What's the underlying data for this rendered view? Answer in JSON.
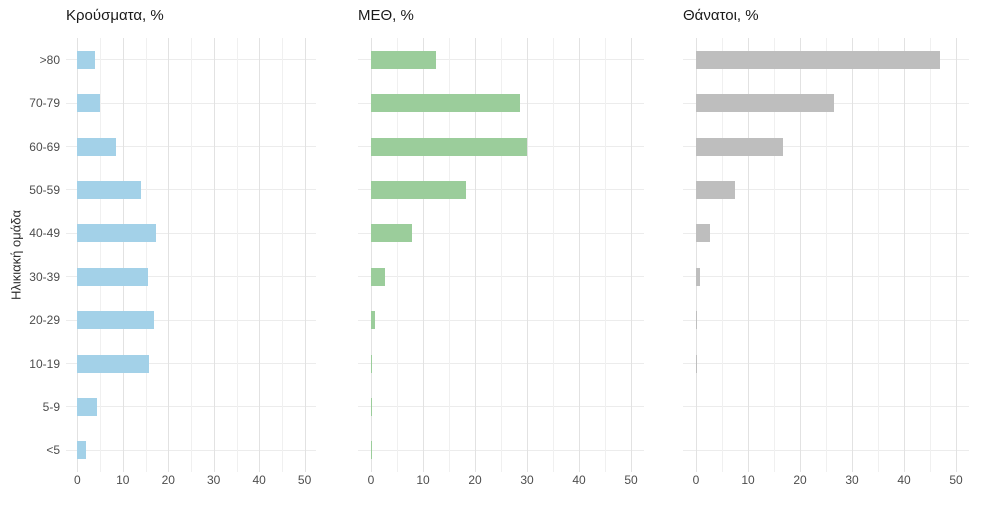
{
  "figure": {
    "background": "#ffffff",
    "text_color": "#1a1a1a",
    "axis_text_color": "#4d4d4d",
    "grid_major_color": "#e2e2e2",
    "grid_minor_color": "#f0f0f0"
  },
  "chart_data": {
    "type": "bar",
    "orientation": "horizontal",
    "ylabel": "Ηλικιακή ομάδα",
    "categories": [
      ">80",
      "70-79",
      "60-69",
      "50-59",
      "40-49",
      "30-39",
      "20-29",
      "10-19",
      "5-9",
      "<5"
    ],
    "series": [
      {
        "name": "Κρούσματα, %",
        "color": "#A3D1E8",
        "values": [
          3.8,
          5.0,
          8.6,
          14.0,
          17.3,
          15.5,
          16.8,
          15.7,
          4.4,
          2.0
        ]
      },
      {
        "name": "ΜΕΘ, %",
        "color": "#9BCD9B",
        "values": [
          12.5,
          28.7,
          30.0,
          18.3,
          7.8,
          2.6,
          0.8,
          0.2,
          0.1,
          0.1
        ]
      },
      {
        "name": "Θάνατοι, %",
        "color": "#BEBEBE",
        "values": [
          47.0,
          26.5,
          16.8,
          7.5,
          2.6,
          0.8,
          0.1,
          0.1,
          0,
          0
        ]
      }
    ],
    "xlim": [
      0,
      50
    ],
    "x_ticks": [
      0,
      10,
      20,
      30,
      40,
      50
    ],
    "x_minor_ticks": [
      5,
      15,
      25,
      35,
      45
    ],
    "grid": "on",
    "legend": "none"
  }
}
